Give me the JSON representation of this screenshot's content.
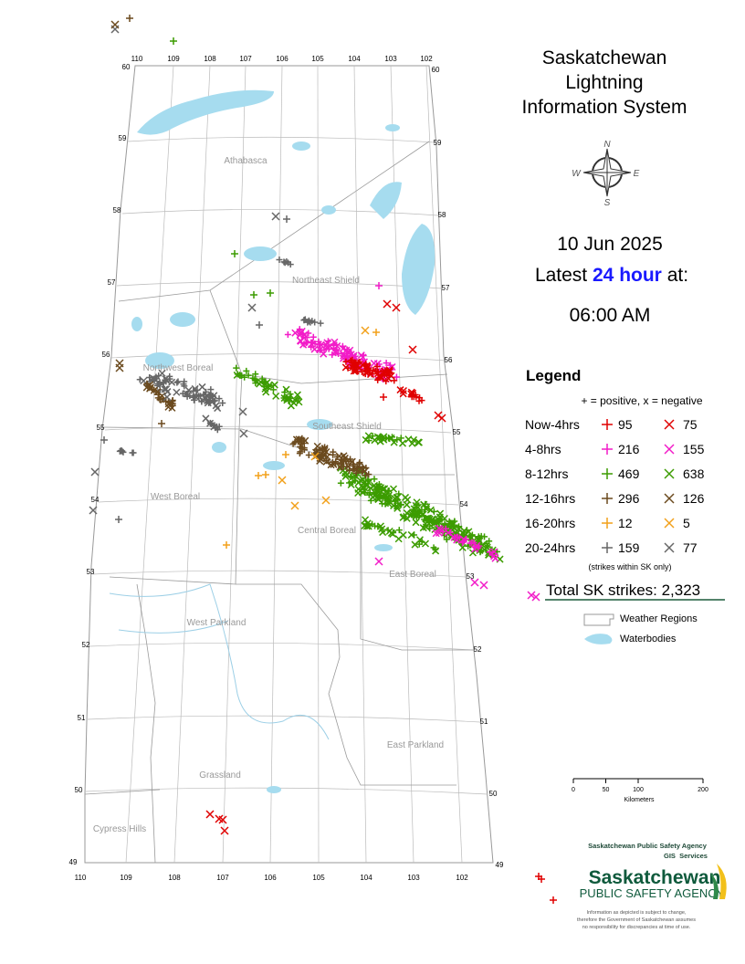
{
  "header": {
    "title_lines": [
      "Saskatchewan",
      "Lightning",
      "Information System"
    ],
    "compass": {
      "n": "N",
      "e": "E",
      "s": "S",
      "w": "W"
    }
  },
  "date": "10 Jun 2025",
  "latest": {
    "prefix": "Latest",
    "highlight": "24 hour",
    "suffix": "at:"
  },
  "time": "06:00 AM",
  "legend": {
    "title": "Legend",
    "subtitle": "+ = positive, x = negative",
    "rows": [
      {
        "label": "Now-4hrs",
        "color": "#e00000",
        "positive": 95,
        "negative": 75
      },
      {
        "label": "4-8hrs",
        "color": "#f21cc8",
        "positive": 216,
        "negative": 155
      },
      {
        "label": "8-12hrs",
        "color": "#3c9c00",
        "positive": 469,
        "negative": 638
      },
      {
        "label": "12-16hrs",
        "color": "#6b4a1e",
        "positive": 296,
        "negative": 126
      },
      {
        "label": "16-20hrs",
        "color": "#f2a01a",
        "positive": 12,
        "negative": 5
      },
      {
        "label": "20-24hrs",
        "color": "#666666",
        "positive": 159,
        "negative": 77
      }
    ],
    "note": "(strikes within SK only)",
    "total": "Total SK strikes: 2,323",
    "weather_regions": "Weather Regions",
    "waterbodies": "Waterbodies"
  },
  "map": {
    "regions": [
      "Athabasca",
      "Northeast Shield",
      "Northwest Boreal",
      "Southeast Shield",
      "West Boreal",
      "Central Boreal",
      "East Boreal",
      "West Parkland",
      "East Parkland",
      "Grassland",
      "Cypress Hills"
    ],
    "lon_top": [
      110,
      109,
      108,
      107,
      106,
      105,
      104,
      103,
      102
    ],
    "lon_bottom": [
      110,
      109,
      108,
      107,
      106,
      105,
      104,
      103,
      102
    ],
    "lat": [
      60,
      59,
      58,
      57,
      56,
      55,
      54,
      53,
      52,
      51,
      50,
      49
    ]
  },
  "scale": {
    "ticks": [
      0,
      50,
      100,
      200
    ],
    "unit": "Kilometers"
  },
  "agency": {
    "line1": "Saskatchewan Public Safety Agency",
    "line2": "GIS  Services",
    "logo_top": "Saskatchewan",
    "logo_bottom": "PUBLIC SAFETY AGENCY",
    "disclaimer": [
      "Information as depicted is subject to change,",
      "therefore the Government of Saskatchewan assumes",
      "no responsibility for discrepancies at time of use."
    ]
  }
}
